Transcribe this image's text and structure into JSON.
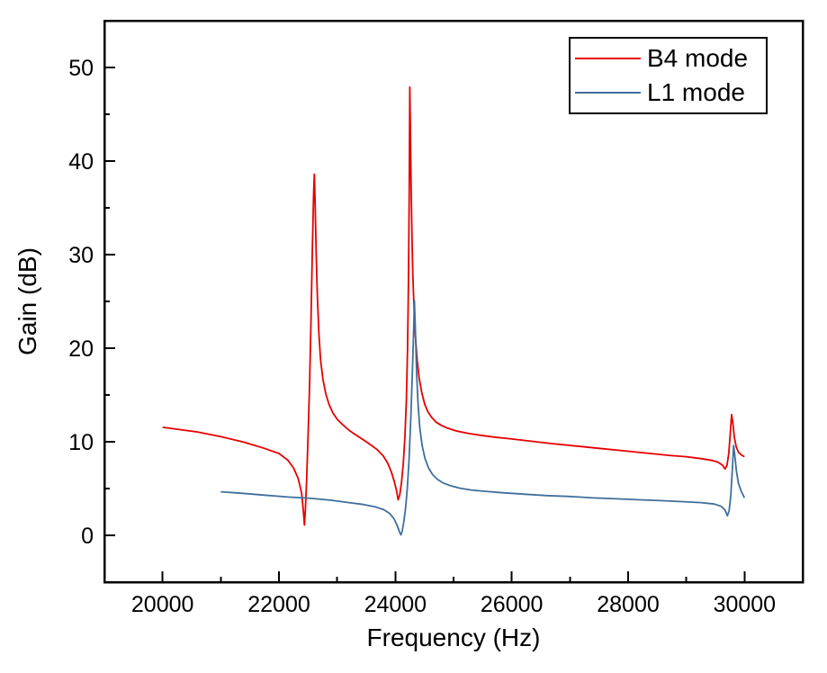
{
  "figure": {
    "background": "#ffffff",
    "frame_color": "#000000"
  },
  "chart_data": {
    "type": "line",
    "title": "",
    "xlabel": "Frequency (Hz)",
    "ylabel": "Gain (dB)",
    "xlim": [
      19000,
      31000
    ],
    "ylim": [
      -5,
      55
    ],
    "x_major_ticks": [
      20000,
      22000,
      24000,
      26000,
      28000,
      30000
    ],
    "x_minor_ticks": [
      21000,
      23000,
      25000,
      27000,
      29000
    ],
    "y_major_ticks": [
      0,
      10,
      20,
      30,
      40,
      50
    ],
    "y_minor_ticks": [
      5,
      15,
      25,
      35,
      45
    ],
    "grid": false,
    "legend": {
      "position": "top-right",
      "border": true,
      "entries": [
        "B4 mode",
        "L1 mode"
      ]
    },
    "series": [
      {
        "name": "B4 mode",
        "color": "#e60000",
        "points": [
          [
            20000,
            11.55
          ],
          [
            20300,
            11.3
          ],
          [
            20600,
            11.05
          ],
          [
            21000,
            10.55
          ],
          [
            21400,
            9.95
          ],
          [
            21750,
            9.3
          ],
          [
            22000,
            8.75
          ],
          [
            22150,
            8.05
          ],
          [
            22250,
            7.2
          ],
          [
            22330,
            6.1
          ],
          [
            22390,
            4.5
          ],
          [
            22420,
            2.5
          ],
          [
            22437,
            1.1
          ],
          [
            22455,
            2.8
          ],
          [
            22475,
            5.8
          ],
          [
            22500,
            10.5
          ],
          [
            22525,
            16
          ],
          [
            22550,
            23
          ],
          [
            22575,
            31
          ],
          [
            22595,
            36.5
          ],
          [
            22608,
            38.6
          ],
          [
            22622,
            35.5
          ],
          [
            22640,
            30
          ],
          [
            22660,
            25.5
          ],
          [
            22685,
            21.7
          ],
          [
            22715,
            18.8
          ],
          [
            22755,
            16.7
          ],
          [
            22805,
            15.1
          ],
          [
            22860,
            14.0
          ],
          [
            22925,
            13.1
          ],
          [
            23000,
            12.4
          ],
          [
            23100,
            11.8
          ],
          [
            23210,
            11.2
          ],
          [
            23330,
            10.7
          ],
          [
            23450,
            10.2
          ],
          [
            23570,
            9.7
          ],
          [
            23680,
            9.2
          ],
          [
            23790,
            8.5
          ],
          [
            23870,
            7.7
          ],
          [
            23930,
            6.8
          ],
          [
            23980,
            5.8
          ],
          [
            24020,
            4.8
          ],
          [
            24048,
            3.8
          ],
          [
            24075,
            4.3
          ],
          [
            24105,
            5.6
          ],
          [
            24135,
            7.6
          ],
          [
            24165,
            10.6
          ],
          [
            24190,
            14.5
          ],
          [
            24210,
            20
          ],
          [
            24225,
            27
          ],
          [
            24237,
            36
          ],
          [
            24248,
            47.9
          ],
          [
            24260,
            43
          ],
          [
            24272,
            37
          ],
          [
            24285,
            32
          ],
          [
            24300,
            28
          ],
          [
            24320,
            24.5
          ],
          [
            24345,
            21.3
          ],
          [
            24375,
            18.7
          ],
          [
            24410,
            16.8
          ],
          [
            24455,
            15.2
          ],
          [
            24505,
            14.0
          ],
          [
            24560,
            13.2
          ],
          [
            24625,
            12.6
          ],
          [
            24700,
            12.1
          ],
          [
            24790,
            11.75
          ],
          [
            24900,
            11.45
          ],
          [
            25050,
            11.15
          ],
          [
            25250,
            10.9
          ],
          [
            25450,
            10.7
          ],
          [
            25700,
            10.5
          ],
          [
            26000,
            10.3
          ],
          [
            26350,
            10.05
          ],
          [
            26700,
            9.8
          ],
          [
            27100,
            9.55
          ],
          [
            27500,
            9.3
          ],
          [
            27900,
            9.05
          ],
          [
            28300,
            8.8
          ],
          [
            28700,
            8.55
          ],
          [
            29000,
            8.4
          ],
          [
            29250,
            8.2
          ],
          [
            29450,
            8.0
          ],
          [
            29550,
            7.8
          ],
          [
            29620,
            7.5
          ],
          [
            29665,
            7.1
          ],
          [
            29700,
            7.5
          ],
          [
            29730,
            8.8
          ],
          [
            29755,
            10.9
          ],
          [
            29778,
            12.9
          ],
          [
            29800,
            12.0
          ],
          [
            29825,
            10.5
          ],
          [
            29855,
            9.5
          ],
          [
            29895,
            8.9
          ],
          [
            29945,
            8.6
          ],
          [
            30000,
            8.4
          ]
        ]
      },
      {
        "name": "L1 mode",
        "color": "#3f6f9c",
        "points": [
          [
            21000,
            4.65
          ],
          [
            21350,
            4.5
          ],
          [
            21750,
            4.3
          ],
          [
            22150,
            4.1
          ],
          [
            22550,
            3.95
          ],
          [
            22900,
            3.75
          ],
          [
            23200,
            3.5
          ],
          [
            23450,
            3.3
          ],
          [
            23650,
            3.05
          ],
          [
            23800,
            2.75
          ],
          [
            23900,
            2.35
          ],
          [
            23975,
            1.8
          ],
          [
            24035,
            1.0
          ],
          [
            24075,
            0.3
          ],
          [
            24095,
            0.05
          ],
          [
            24115,
            0.4
          ],
          [
            24145,
            1.4
          ],
          [
            24175,
            2.9
          ],
          [
            24205,
            5.0
          ],
          [
            24235,
            8.0
          ],
          [
            24265,
            12.5
          ],
          [
            24290,
            17
          ],
          [
            24310,
            21
          ],
          [
            24328,
            25.1
          ],
          [
            24345,
            22
          ],
          [
            24365,
            17.5
          ],
          [
            24390,
            14
          ],
          [
            24420,
            11.5
          ],
          [
            24460,
            9.6
          ],
          [
            24510,
            8.2
          ],
          [
            24570,
            7.2
          ],
          [
            24640,
            6.5
          ],
          [
            24720,
            6.0
          ],
          [
            24820,
            5.6
          ],
          [
            24950,
            5.3
          ],
          [
            25100,
            5.05
          ],
          [
            25300,
            4.85
          ],
          [
            25550,
            4.7
          ],
          [
            25850,
            4.55
          ],
          [
            26200,
            4.4
          ],
          [
            26600,
            4.25
          ],
          [
            27000,
            4.15
          ],
          [
            27400,
            4.0
          ],
          [
            27800,
            3.9
          ],
          [
            28200,
            3.8
          ],
          [
            28600,
            3.7
          ],
          [
            28950,
            3.6
          ],
          [
            29250,
            3.5
          ],
          [
            29480,
            3.35
          ],
          [
            29600,
            3.1
          ],
          [
            29665,
            2.7
          ],
          [
            29705,
            2.1
          ],
          [
            29735,
            2.6
          ],
          [
            29765,
            4.3
          ],
          [
            29790,
            7.0
          ],
          [
            29812,
            9.6
          ],
          [
            29835,
            8.4
          ],
          [
            29860,
            6.9
          ],
          [
            29895,
            5.6
          ],
          [
            29940,
            4.75
          ],
          [
            30000,
            4.0
          ]
        ]
      }
    ]
  }
}
